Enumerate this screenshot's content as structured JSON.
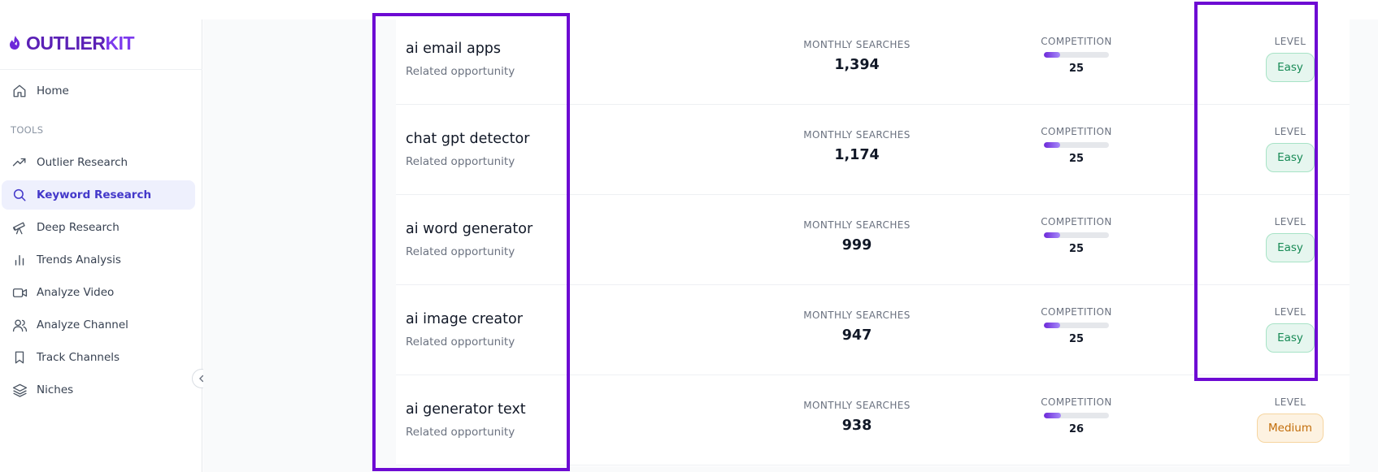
{
  "brand": {
    "name_part1": "OUTLIER",
    "name_part2": "KIT"
  },
  "sidebar": {
    "home": {
      "label": "Home",
      "icon": "home-icon"
    },
    "section_label": "TOOLS",
    "items": [
      {
        "label": "Outlier Research",
        "icon": "trending-up-icon"
      },
      {
        "label": "Keyword Research",
        "icon": "search-icon",
        "active": true
      },
      {
        "label": "Deep Research",
        "icon": "telescope-icon"
      },
      {
        "label": "Trends Analysis",
        "icon": "bar-chart-icon"
      },
      {
        "label": "Analyze Video",
        "icon": "video-icon"
      },
      {
        "label": "Analyze Channel",
        "icon": "users-icon"
      },
      {
        "label": "Track Channels",
        "icon": "bookmark-icon"
      },
      {
        "label": "Niches",
        "icon": "layers-icon"
      }
    ]
  },
  "labels": {
    "monthly_searches": "MONTHLY SEARCHES",
    "competition": "COMPETITION",
    "level": "LEVEL"
  },
  "keywords": [
    {
      "title": "ai email apps",
      "subtitle": "Related opportunity",
      "monthly_searches": "1,394",
      "competition": "25",
      "level": "Easy"
    },
    {
      "title": "chat gpt detector",
      "subtitle": "Related opportunity",
      "monthly_searches": "1,174",
      "competition": "25",
      "level": "Easy"
    },
    {
      "title": "ai word generator",
      "subtitle": "Related opportunity",
      "monthly_searches": "999",
      "competition": "25",
      "level": "Easy"
    },
    {
      "title": "ai image creator",
      "subtitle": "Related opportunity",
      "monthly_searches": "947",
      "competition": "25",
      "level": "Easy"
    },
    {
      "title": "ai generator text",
      "subtitle": "Related opportunity",
      "monthly_searches": "938",
      "competition": "26",
      "level": "Medium"
    }
  ],
  "colors": {
    "brand": "#5b21b6",
    "accent": "#7c3aed",
    "highlight": "#6d0ad3",
    "easy": "#178a55",
    "medium": "#c26d0a"
  }
}
